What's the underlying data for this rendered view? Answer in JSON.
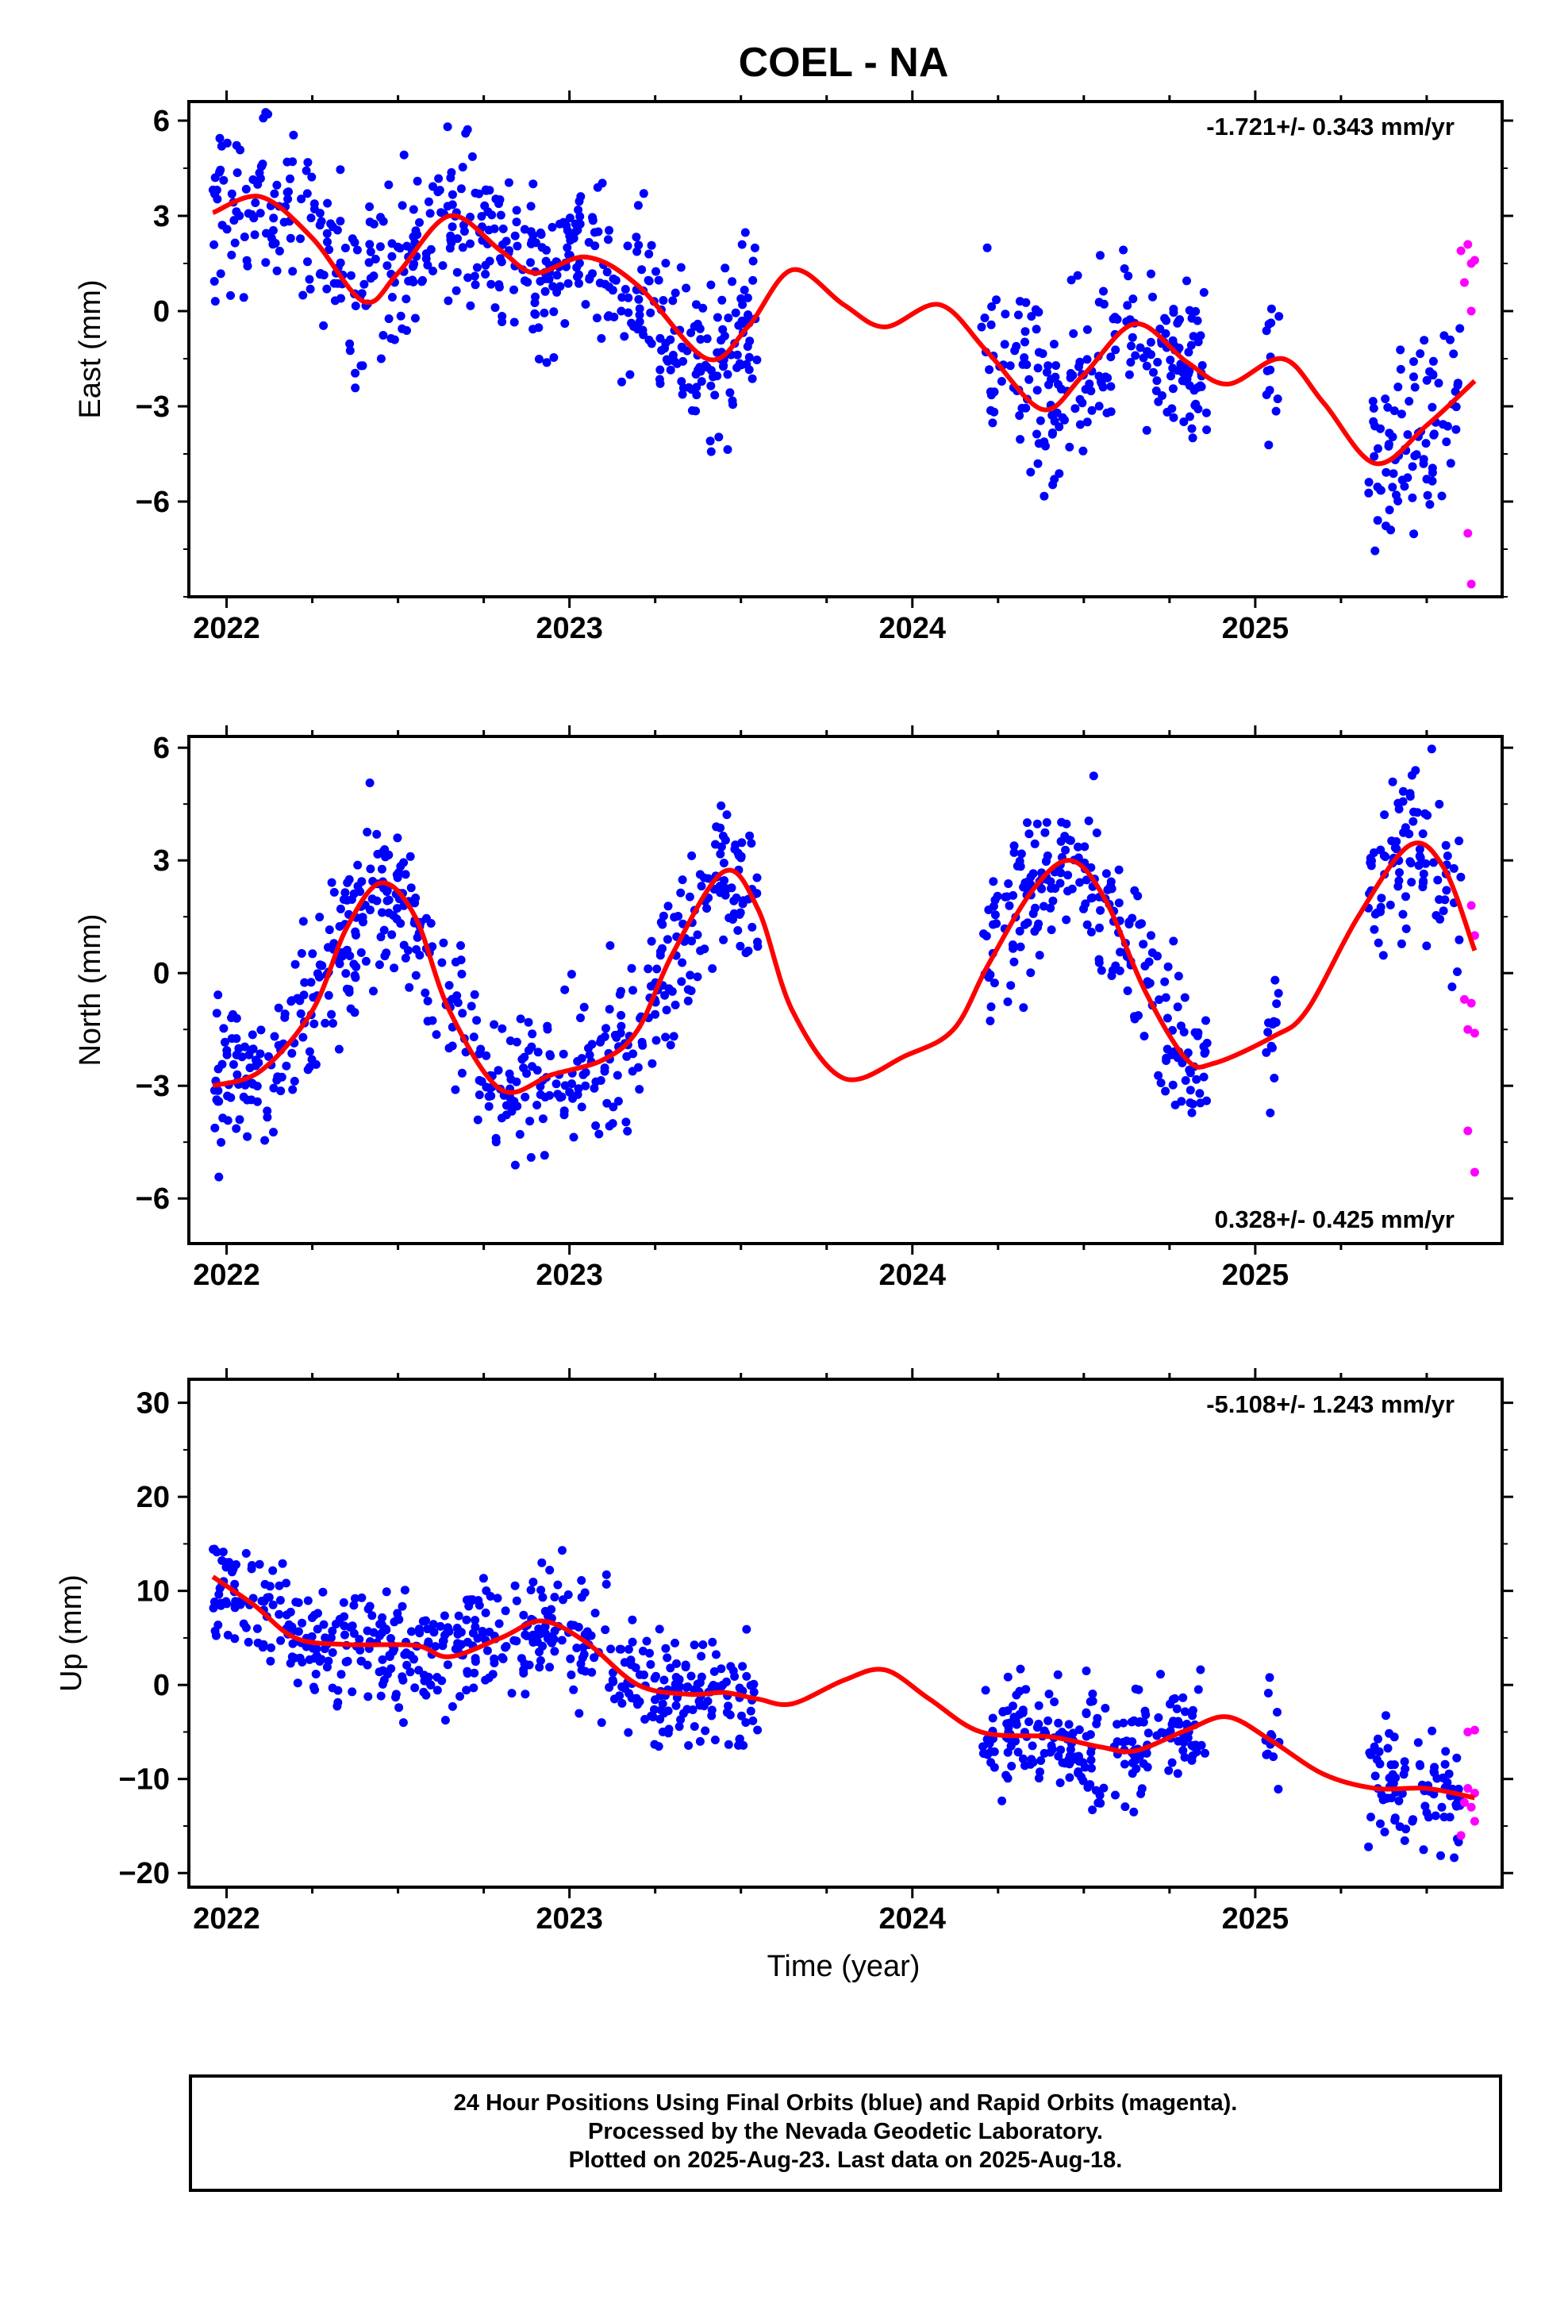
{
  "title": "COEL - NA",
  "colors": {
    "final": "#0000ff",
    "rapid": "#ff00ff",
    "model": "#ff0000",
    "frame": "#000000"
  },
  "xlabel": "Time (year)",
  "caption": [
    "24 Hour Positions Using Final Orbits (blue) and Rapid Orbits (magenta).",
    "Processed by the Nevada Geodetic Laboratory.",
    "Plotted on 2025-Aug-23. Last data on 2025-Aug-18."
  ],
  "chart_data": [
    {
      "type": "scatter",
      "ylabel": "East (mm)",
      "rate_label": "-1.721+/- 0.343 mm/yr",
      "xlim": [
        2021.89,
        2025.72
      ],
      "ylim": [
        -9.0,
        6.6
      ],
      "xticks": [
        2022,
        2023,
        2024,
        2025
      ],
      "yticks": [
        -6,
        -3,
        0,
        3,
        6
      ],
      "amp": 1.9,
      "model": [
        [
          2021.96,
          3.1
        ],
        [
          2022.1,
          3.6
        ],
        [
          2022.25,
          2.3
        ],
        [
          2022.4,
          0.3
        ],
        [
          2022.5,
          1.2
        ],
        [
          2022.65,
          3.0
        ],
        [
          2022.8,
          1.9
        ],
        [
          2022.9,
          1.2
        ],
        [
          2023.05,
          1.7
        ],
        [
          2023.2,
          0.8
        ],
        [
          2023.4,
          -1.5
        ],
        [
          2023.52,
          -0.5
        ],
        [
          2023.65,
          1.3
        ],
        [
          2023.8,
          0.2
        ],
        [
          2023.92,
          -0.5
        ],
        [
          2024.08,
          0.2
        ],
        [
          2024.22,
          -1.3
        ],
        [
          2024.38,
          -3.1
        ],
        [
          2024.5,
          -2.0
        ],
        [
          2024.65,
          -0.4
        ],
        [
          2024.8,
          -1.6
        ],
        [
          2024.92,
          -2.3
        ],
        [
          2025.08,
          -1.5
        ],
        [
          2025.2,
          -2.9
        ],
        [
          2025.35,
          -4.8
        ],
        [
          2025.5,
          -3.6
        ],
        [
          2025.64,
          -2.2
        ]
      ],
      "rapid": [
        [
          2025.6,
          1.9
        ],
        [
          2025.62,
          2.1
        ],
        [
          2025.63,
          1.5
        ],
        [
          2025.63,
          0.0
        ],
        [
          2025.62,
          -7.0
        ],
        [
          2025.63,
          -8.6
        ],
        [
          2025.61,
          0.9
        ],
        [
          2025.64,
          1.6
        ]
      ]
    },
    {
      "type": "scatter",
      "ylabel": "North (mm)",
      "rate_label": "0.328+/- 0.425 mm/yr",
      "xlim": [
        2021.89,
        2025.72
      ],
      "ylim": [
        -7.2,
        6.3
      ],
      "xticks": [
        2022,
        2023,
        2024,
        2025
      ],
      "yticks": [
        -6,
        -3,
        0,
        3,
        6
      ],
      "amp": 1.5,
      "model": [
        [
          2021.96,
          -3.0
        ],
        [
          2022.1,
          -2.6
        ],
        [
          2022.25,
          -1.0
        ],
        [
          2022.35,
          1.2
        ],
        [
          2022.45,
          2.4
        ],
        [
          2022.55,
          1.5
        ],
        [
          2022.65,
          -1.0
        ],
        [
          2022.8,
          -3.1
        ],
        [
          2022.95,
          -2.7
        ],
        [
          2023.1,
          -2.3
        ],
        [
          2023.2,
          -1.5
        ],
        [
          2023.3,
          0.5
        ],
        [
          2023.45,
          2.7
        ],
        [
          2023.55,
          1.7
        ],
        [
          2023.65,
          -1.0
        ],
        [
          2023.8,
          -2.8
        ],
        [
          2023.98,
          -2.2
        ],
        [
          2024.12,
          -1.5
        ],
        [
          2024.22,
          0.2
        ],
        [
          2024.35,
          2.2
        ],
        [
          2024.46,
          3.0
        ],
        [
          2024.56,
          2.0
        ],
        [
          2024.68,
          -0.5
        ],
        [
          2024.8,
          -2.3
        ],
        [
          2024.88,
          -2.4
        ],
        [
          2025.05,
          -1.7
        ],
        [
          2025.15,
          -1.0
        ],
        [
          2025.3,
          1.5
        ],
        [
          2025.45,
          3.4
        ],
        [
          2025.55,
          2.8
        ],
        [
          2025.64,
          0.6
        ]
      ],
      "rapid": [
        [
          2025.61,
          -0.7
        ],
        [
          2025.63,
          -0.8
        ],
        [
          2025.62,
          -1.5
        ],
        [
          2025.64,
          -1.6
        ],
        [
          2025.62,
          -4.2
        ],
        [
          2025.64,
          -5.3
        ],
        [
          2025.63,
          1.8
        ],
        [
          2025.64,
          1.0
        ]
      ]
    },
    {
      "type": "scatter",
      "ylabel": "Up (mm)",
      "rate_label": "-5.108+/- 1.243 mm/yr",
      "xlim": [
        2021.89,
        2025.72
      ],
      "ylim": [
        -21.5,
        32.5
      ],
      "xticks": [
        2022,
        2023,
        2024,
        2025
      ],
      "yticks": [
        -20,
        -10,
        0,
        10,
        20,
        30
      ],
      "amp": 4.5,
      "model": [
        [
          2021.96,
          11.5
        ],
        [
          2022.08,
          8.5
        ],
        [
          2022.2,
          5.0
        ],
        [
          2022.35,
          4.3
        ],
        [
          2022.55,
          4.2
        ],
        [
          2022.65,
          3.0
        ],
        [
          2022.8,
          5.0
        ],
        [
          2022.92,
          6.8
        ],
        [
          2023.05,
          4.5
        ],
        [
          2023.2,
          0.0
        ],
        [
          2023.35,
          -1.0
        ],
        [
          2023.45,
          -0.8
        ],
        [
          2023.55,
          -1.5
        ],
        [
          2023.65,
          -2.0
        ],
        [
          2023.8,
          0.5
        ],
        [
          2023.92,
          1.6
        ],
        [
          2024.05,
          -1.5
        ],
        [
          2024.2,
          -5.0
        ],
        [
          2024.4,
          -5.5
        ],
        [
          2024.55,
          -6.6
        ],
        [
          2024.65,
          -7.0
        ],
        [
          2024.8,
          -4.8
        ],
        [
          2024.92,
          -3.4
        ],
        [
          2025.05,
          -6.0
        ],
        [
          2025.2,
          -9.5
        ],
        [
          2025.35,
          -11.0
        ],
        [
          2025.5,
          -11.0
        ],
        [
          2025.64,
          -12.0
        ]
      ],
      "rapid": [
        [
          2025.62,
          -11.0
        ],
        [
          2025.64,
          -11.5
        ],
        [
          2025.63,
          -13.0
        ],
        [
          2025.64,
          -14.5
        ],
        [
          2025.62,
          -5.0
        ],
        [
          2025.64,
          -4.8
        ],
        [
          2025.61,
          -12.5
        ],
        [
          2025.6,
          -16.0
        ]
      ]
    }
  ],
  "data_spans": [
    [
      2021.96,
      2023.55
    ],
    [
      2024.2,
      2024.86
    ],
    [
      2025.03,
      2025.07
    ],
    [
      2025.33,
      2025.6
    ]
  ]
}
